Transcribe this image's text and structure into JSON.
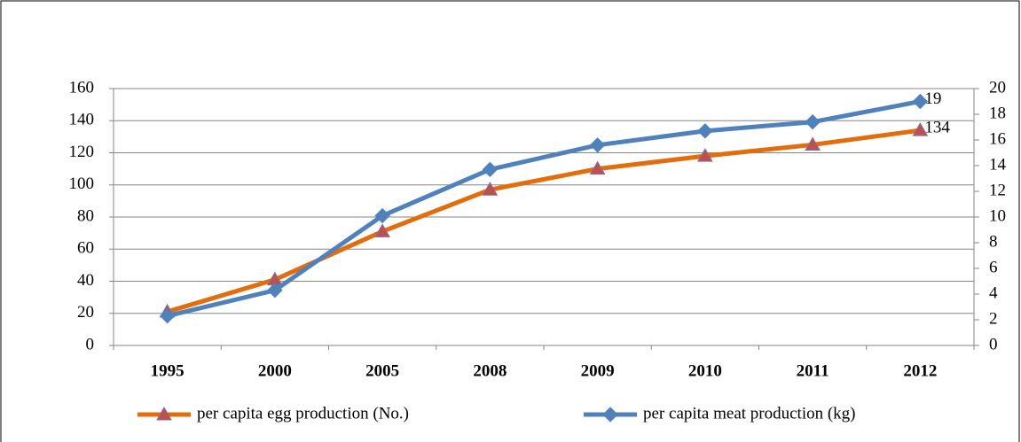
{
  "chart_data": {
    "type": "line",
    "categories": [
      "1995",
      "2000",
      "2005",
      "2008",
      "2009",
      "2010",
      "2011",
      "2012"
    ],
    "series": [
      {
        "name": "per capita egg production (No.)",
        "color": "#e46c0a",
        "marker": "triangle",
        "marker_color": "#c0504d",
        "values": [
          21,
          41,
          71,
          97,
          110,
          118,
          125,
          134
        ],
        "value_labels": [
          null,
          null,
          null,
          null,
          null,
          null,
          null,
          "134"
        ]
      },
      {
        "name": "per capita meat production (kg)",
        "color": "#4f81bd",
        "marker": "diamond",
        "marker_color": "#4f81bd",
        "axis": "y2",
        "values": [
          2.3,
          4.3,
          10.1,
          13.7,
          15.6,
          16.7,
          17.4,
          19
        ],
        "value_labels": [
          null,
          null,
          null,
          null,
          null,
          null,
          null,
          "19"
        ]
      }
    ],
    "ylim": [
      0,
      160
    ],
    "yticks": [
      0,
      20,
      40,
      60,
      80,
      100,
      120,
      140,
      160
    ],
    "y2lim": [
      0,
      20
    ],
    "y2ticks": [
      0,
      2,
      4,
      6,
      8,
      10,
      12,
      14,
      16,
      18,
      20
    ],
    "grid": true,
    "legend": "bottom"
  }
}
